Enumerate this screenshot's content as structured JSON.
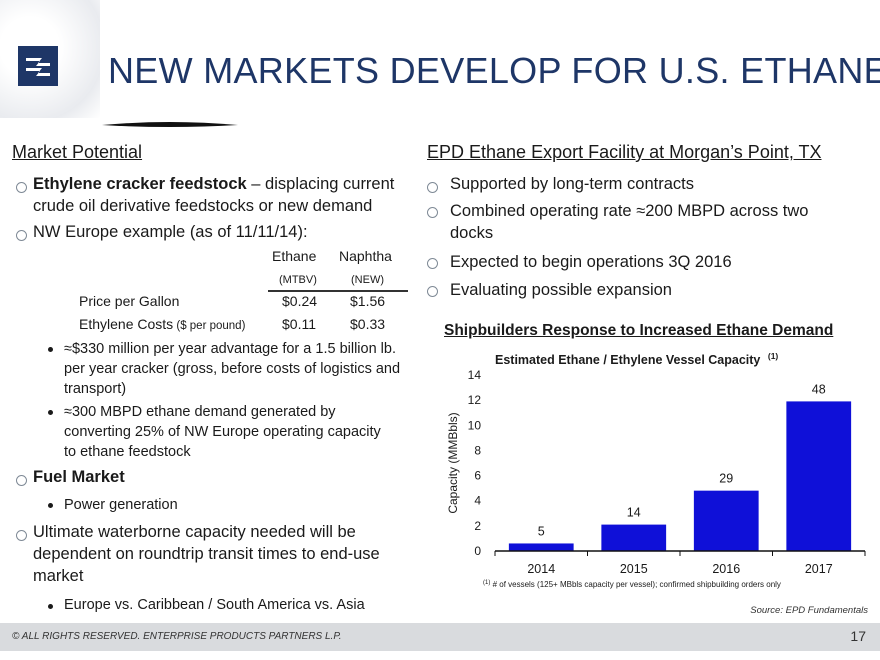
{
  "header": {
    "title": "NEW MARKETS DEVELOP FOR U.S. ETHANE"
  },
  "left": {
    "heading": "Market Potential",
    "bullet1_bold": "Ethylene cracker feedstock",
    "bullet1_rest": " – displacing current crude oil derivative feedstocks or new demand",
    "bullet2": "NW Europe example (as of 11/11/14):",
    "table": {
      "col1": "Ethane",
      "col2": "Naphtha",
      "col1_sub": "(MTBV)",
      "col2_sub": "(NEW)",
      "rows": [
        {
          "label": "Price per Gallon",
          "unit": "",
          "v1": "$0.24",
          "v2": "$1.56"
        },
        {
          "label": "Ethylene Costs",
          "unit": " ($ per pound)",
          "v1": "$0.11",
          "v2": "$0.33"
        }
      ]
    },
    "sub1": "≈$330 million per year advantage for a 1.5 billion lb. per year cracker (gross, before costs of logistics and transport)",
    "sub2": "≈300 MBPD ethane demand generated by converting 25% of NW Europe operating capacity to ethane feedstock",
    "bullet3": "Fuel Market",
    "sub3": "Power generation",
    "bullet4": "Ultimate waterborne capacity needed will be dependent on roundtrip transit times to end-use market",
    "sub4": "Europe vs. Caribbean / South America vs. Asia"
  },
  "right": {
    "heading": "EPD Ethane Export Facility at Morgan’s Point, TX",
    "bullets": [
      "Supported by long-term contracts",
      "Combined operating rate ≈200 MBPD across two docks",
      "Expected to begin operations 3Q 2016",
      "Evaluating possible expansion"
    ],
    "chart_heading": "Shipbuilders Response to Increased Ethane Demand"
  },
  "chart_data": {
    "type": "bar",
    "title": "Estimated Ethane / Ethylene Vessel Capacity",
    "title_sup": "(1)",
    "ylabel": "Capacity (MMBbls)",
    "xlabel": "",
    "ylim": [
      0,
      14
    ],
    "yticks": [
      0,
      2,
      4,
      6,
      8,
      10,
      12,
      14
    ],
    "categories": [
      "2014",
      "2015",
      "2016",
      "2017"
    ],
    "values": [
      0.6,
      2.1,
      4.8,
      11.9
    ],
    "data_labels": [
      "5",
      "14",
      "29",
      "48"
    ],
    "bar_color": "#0f10d8",
    "footnote_mark": "(1)",
    "footnote": " # of vessels (125+ MBbls capacity per vessel); confirmed shipbuilding orders only"
  },
  "footer": {
    "source": "Source:  EPD Fundamentals",
    "copyright": "© ALL RIGHTS RESERVED. ENTERPRISE PRODUCTS PARTNERS L.P.",
    "page": "17"
  }
}
